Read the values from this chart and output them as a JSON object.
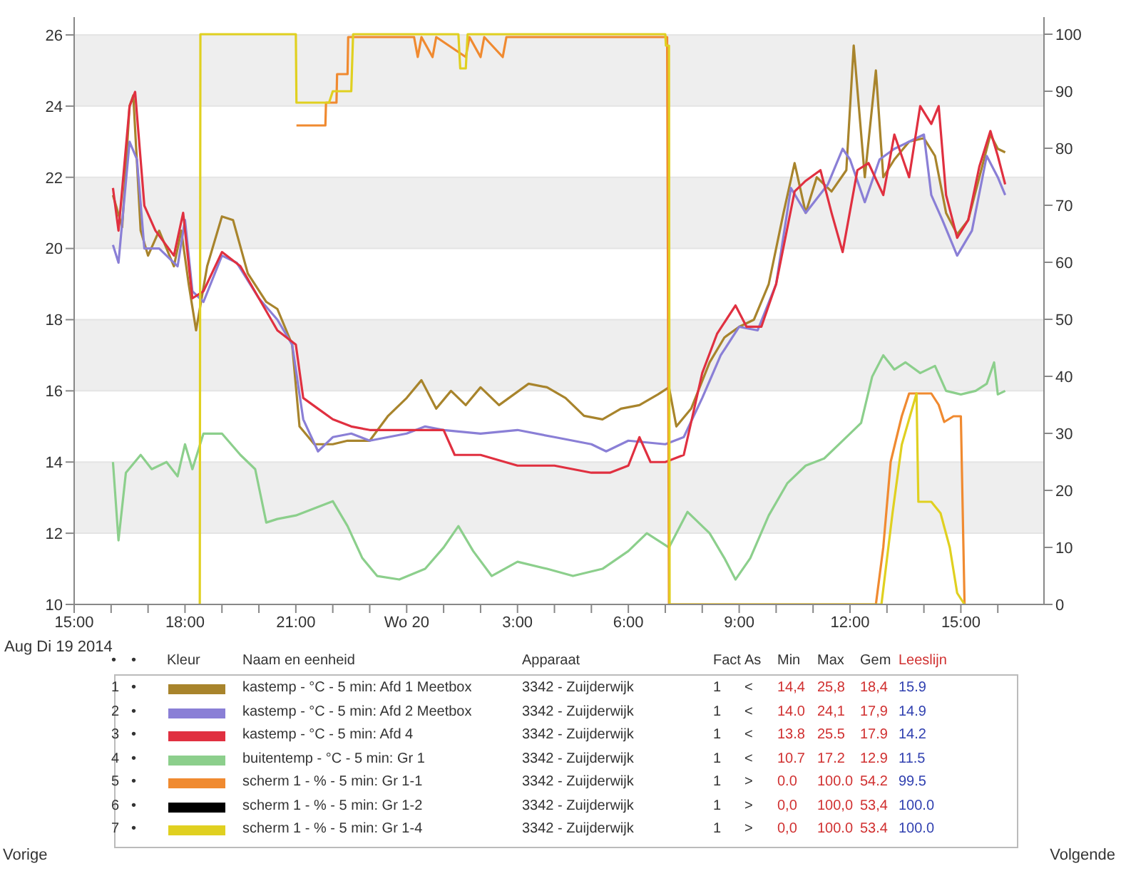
{
  "chart_data": {
    "type": "line",
    "xlim": [
      "2014-08-19T15:00",
      "2014-08-20T17:15"
    ],
    "ylim": [
      10,
      26.5
    ],
    "y2lim": [
      0,
      103
    ],
    "xticks": [
      {
        "value": "2014-08-19T15:00",
        "label": "15:00"
      },
      {
        "value": "2014-08-19T16:00",
        "label": null
      },
      {
        "value": "2014-08-19T17:00",
        "label": null
      },
      {
        "value": "2014-08-19T18:00",
        "label": "18:00"
      },
      {
        "value": "2014-08-19T19:00",
        "label": null
      },
      {
        "value": "2014-08-19T20:00",
        "label": null
      },
      {
        "value": "2014-08-19T21:00",
        "label": "21:00"
      },
      {
        "value": "2014-08-19T22:00",
        "label": null
      },
      {
        "value": "2014-08-19T23:00",
        "label": null
      },
      {
        "value": "2014-08-20T00:00",
        "label": "Wo 20"
      },
      {
        "value": "2014-08-20T01:00",
        "label": null
      },
      {
        "value": "2014-08-20T02:00",
        "label": null
      },
      {
        "value": "2014-08-20T03:00",
        "label": "3:00"
      },
      {
        "value": "2014-08-20T04:00",
        "label": null
      },
      {
        "value": "2014-08-20T05:00",
        "label": null
      },
      {
        "value": "2014-08-20T06:00",
        "label": "6:00"
      },
      {
        "value": "2014-08-20T07:00",
        "label": null
      },
      {
        "value": "2014-08-20T08:00",
        "label": null
      },
      {
        "value": "2014-08-20T09:00",
        "label": "9:00"
      },
      {
        "value": "2014-08-20T10:00",
        "label": null
      },
      {
        "value": "2014-08-20T11:00",
        "label": null
      },
      {
        "value": "2014-08-20T12:00",
        "label": "12:00"
      },
      {
        "value": "2014-08-20T13:00",
        "label": null
      },
      {
        "value": "2014-08-20T14:00",
        "label": null
      },
      {
        "value": "2014-08-20T15:00",
        "label": "15:00"
      },
      {
        "value": "2014-08-20T16:00",
        "label": null
      }
    ],
    "yticks": [
      10,
      12,
      14,
      16,
      18,
      20,
      22,
      24,
      26
    ],
    "y2ticks": [
      0,
      10,
      20,
      30,
      40,
      50,
      60,
      70,
      80,
      90,
      100
    ],
    "grid": "y",
    "legend": "bottom",
    "series": [
      {
        "name": "kastemp - °C - 5 min: Afd 1 Meetbox",
        "color": "#a8842c",
        "x": [
          "2014-08-19T16:03",
          "2014-08-19T16:18",
          "2014-08-19T16:30",
          "2014-08-19T16:36",
          "2014-08-19T16:48",
          "2014-08-19T17:00",
          "2014-08-19T17:18",
          "2014-08-19T17:42",
          "2014-08-19T17:54",
          "2014-08-19T18:06",
          "2014-08-19T18:18",
          "2014-08-19T18:36",
          "2014-08-19T19:00",
          "2014-08-19T19:18",
          "2014-08-19T19:42",
          "2014-08-19T20:12",
          "2014-08-19T20:30",
          "2014-08-19T20:54",
          "2014-08-19T21:06",
          "2014-08-19T21:30",
          "2014-08-19T22:00",
          "2014-08-19T22:24",
          "2014-08-19T23:00",
          "2014-08-19T23:30",
          "2014-08-20T00:00",
          "2014-08-20T00:24",
          "2014-08-20T00:48",
          "2014-08-20T01:12",
          "2014-08-20T01:36",
          "2014-08-20T02:00",
          "2014-08-20T02:30",
          "2014-08-20T03:18",
          "2014-08-20T03:48",
          "2014-08-20T04:18",
          "2014-08-20T04:48",
          "2014-08-20T05:18",
          "2014-08-20T05:48",
          "2014-08-20T06:18",
          "2014-08-20T06:48",
          "2014-08-20T07:06",
          "2014-08-20T07:18",
          "2014-08-20T07:42",
          "2014-08-20T08:12",
          "2014-08-20T08:36",
          "2014-08-20T09:00",
          "2014-08-20T09:24",
          "2014-08-20T09:48",
          "2014-08-20T10:12",
          "2014-08-20T10:30",
          "2014-08-20T10:48",
          "2014-08-20T11:06",
          "2014-08-20T11:30",
          "2014-08-20T11:54",
          "2014-08-20T12:06",
          "2014-08-20T12:24",
          "2014-08-20T12:42",
          "2014-08-20T12:54",
          "2014-08-20T13:12",
          "2014-08-20T13:36",
          "2014-08-20T14:00",
          "2014-08-20T14:18",
          "2014-08-20T14:36",
          "2014-08-20T14:54",
          "2014-08-20T15:12",
          "2014-08-20T15:30",
          "2014-08-20T15:48",
          "2014-08-20T16:00",
          "2014-08-20T16:12"
        ],
        "values": [
          21.5,
          20.6,
          24.0,
          24.3,
          20.5,
          19.8,
          20.5,
          19.5,
          20.5,
          19.0,
          17.7,
          19.5,
          20.9,
          20.8,
          19.3,
          18.5,
          18.3,
          17.3,
          15.0,
          14.5,
          14.5,
          14.6,
          14.6,
          15.3,
          15.8,
          16.3,
          15.5,
          16.0,
          15.6,
          16.1,
          15.6,
          16.2,
          16.1,
          15.8,
          15.3,
          15.2,
          15.5,
          15.6,
          15.9,
          16.1,
          15.0,
          15.5,
          16.8,
          17.5,
          17.8,
          18.0,
          19.0,
          21.0,
          22.4,
          21.0,
          22.0,
          21.6,
          22.2,
          25.7,
          22.0,
          25.0,
          22.0,
          22.5,
          23.0,
          23.1,
          22.6,
          21.0,
          20.4,
          20.8,
          22.0,
          23.2,
          22.8,
          22.7
        ]
      },
      {
        "name": "kastemp - °C - 5 min: Afd 2 Meetbox",
        "color": "#8a7fd6",
        "x": [
          "2014-08-19T16:03",
          "2014-08-19T16:12",
          "2014-08-19T16:30",
          "2014-08-19T16:42",
          "2014-08-19T16:54",
          "2014-08-19T17:18",
          "2014-08-19T17:48",
          "2014-08-19T18:00",
          "2014-08-19T18:12",
          "2014-08-19T18:30",
          "2014-08-19T19:00",
          "2014-08-19T19:24",
          "2014-08-19T20:00",
          "2014-08-19T20:30",
          "2014-08-19T20:54",
          "2014-08-19T21:12",
          "2014-08-19T21:36",
          "2014-08-19T22:00",
          "2014-08-19T22:30",
          "2014-08-19T23:00",
          "2014-08-20T00:00",
          "2014-08-20T00:30",
          "2014-08-20T01:00",
          "2014-08-20T02:00",
          "2014-08-20T03:00",
          "2014-08-20T04:00",
          "2014-08-20T05:00",
          "2014-08-20T05:24",
          "2014-08-20T06:00",
          "2014-08-20T07:00",
          "2014-08-20T07:30",
          "2014-08-20T08:00",
          "2014-08-20T08:30",
          "2014-08-20T09:00",
          "2014-08-20T09:30",
          "2014-08-20T10:00",
          "2014-08-20T10:24",
          "2014-08-20T10:48",
          "2014-08-20T11:06",
          "2014-08-20T11:24",
          "2014-08-20T11:48",
          "2014-08-20T12:00",
          "2014-08-20T12:24",
          "2014-08-20T12:48",
          "2014-08-20T13:12",
          "2014-08-20T13:36",
          "2014-08-20T14:00",
          "2014-08-20T14:12",
          "2014-08-20T14:30",
          "2014-08-20T14:54",
          "2014-08-20T15:18",
          "2014-08-20T15:42",
          "2014-08-20T16:00",
          "2014-08-20T16:12"
        ],
        "values": [
          20.1,
          19.6,
          23.0,
          22.5,
          20.0,
          20.0,
          19.5,
          20.8,
          18.8,
          18.5,
          19.8,
          19.6,
          18.6,
          18.0,
          17.3,
          15.2,
          14.3,
          14.7,
          14.8,
          14.6,
          14.8,
          15.0,
          14.9,
          14.8,
          14.9,
          14.7,
          14.5,
          14.3,
          14.6,
          14.5,
          14.7,
          15.8,
          17.0,
          17.8,
          17.7,
          19.0,
          21.7,
          21.0,
          21.4,
          21.8,
          22.8,
          22.5,
          21.3,
          22.5,
          22.8,
          23.0,
          23.2,
          21.5,
          20.8,
          19.8,
          20.5,
          22.6,
          22.0,
          21.5
        ]
      },
      {
        "name": "kastemp - °C - 5 min: Afd 4",
        "color": "#e03040",
        "x": [
          "2014-08-19T16:03",
          "2014-08-19T16:12",
          "2014-08-19T16:30",
          "2014-08-19T16:39",
          "2014-08-19T16:54",
          "2014-08-19T17:12",
          "2014-08-19T17:42",
          "2014-08-19T17:57",
          "2014-08-19T18:12",
          "2014-08-19T18:30",
          "2014-08-19T19:00",
          "2014-08-19T19:30",
          "2014-08-19T20:00",
          "2014-08-19T20:30",
          "2014-08-19T21:00",
          "2014-08-19T21:12",
          "2014-08-19T21:36",
          "2014-08-19T22:00",
          "2014-08-19T22:30",
          "2014-08-19T23:00",
          "2014-08-20T00:00",
          "2014-08-20T01:00",
          "2014-08-20T01:18",
          "2014-08-20T02:00",
          "2014-08-20T03:00",
          "2014-08-20T04:00",
          "2014-08-20T05:00",
          "2014-08-20T05:30",
          "2014-08-20T06:00",
          "2014-08-20T06:18",
          "2014-08-20T06:36",
          "2014-08-20T07:00",
          "2014-08-20T07:30",
          "2014-08-20T08:00",
          "2014-08-20T08:24",
          "2014-08-20T08:54",
          "2014-08-20T09:12",
          "2014-08-20T09:36",
          "2014-08-20T10:00",
          "2014-08-20T10:30",
          "2014-08-20T10:48",
          "2014-08-20T11:12",
          "2014-08-20T11:30",
          "2014-08-20T11:48",
          "2014-08-20T12:12",
          "2014-08-20T12:30",
          "2014-08-20T12:54",
          "2014-08-20T13:12",
          "2014-08-20T13:36",
          "2014-08-20T13:54",
          "2014-08-20T14:12",
          "2014-08-20T14:24",
          "2014-08-20T14:36",
          "2014-08-20T14:54",
          "2014-08-20T15:12",
          "2014-08-20T15:30",
          "2014-08-20T15:48",
          "2014-08-20T16:00",
          "2014-08-20T16:12"
        ],
        "values": [
          21.7,
          20.5,
          24.0,
          24.4,
          21.2,
          20.5,
          19.8,
          21.0,
          18.6,
          18.8,
          19.9,
          19.5,
          18.6,
          17.7,
          17.3,
          15.8,
          15.5,
          15.2,
          15.0,
          14.9,
          14.9,
          14.9,
          14.2,
          14.2,
          13.9,
          13.9,
          13.7,
          13.7,
          13.9,
          14.7,
          14.0,
          14.0,
          14.2,
          16.5,
          17.6,
          18.4,
          17.8,
          17.8,
          19.0,
          21.6,
          21.9,
          22.2,
          21.0,
          19.9,
          22.2,
          22.4,
          21.5,
          23.2,
          22.0,
          24.0,
          23.5,
          24.0,
          21.5,
          20.3,
          20.8,
          22.3,
          23.3,
          22.6,
          21.8
        ]
      },
      {
        "name": "buitentemp - °C - 5 min: Gr 1",
        "color": "#8ccf8c",
        "x": [
          "2014-08-19T16:03",
          "2014-08-19T16:12",
          "2014-08-19T16:24",
          "2014-08-19T16:48",
          "2014-08-19T17:06",
          "2014-08-19T17:30",
          "2014-08-19T17:48",
          "2014-08-19T18:00",
          "2014-08-19T18:12",
          "2014-08-19T18:30",
          "2014-08-19T19:00",
          "2014-08-19T19:30",
          "2014-08-19T19:54",
          "2014-08-19T20:12",
          "2014-08-19T20:30",
          "2014-08-19T21:00",
          "2014-08-19T21:30",
          "2014-08-19T22:00",
          "2014-08-19T22:24",
          "2014-08-19T22:48",
          "2014-08-19T23:12",
          "2014-08-19T23:48",
          "2014-08-20T00:30",
          "2014-08-20T01:00",
          "2014-08-20T01:24",
          "2014-08-20T01:48",
          "2014-08-20T02:18",
          "2014-08-20T03:00",
          "2014-08-20T03:48",
          "2014-08-20T04:30",
          "2014-08-20T05:18",
          "2014-08-20T06:00",
          "2014-08-20T06:30",
          "2014-08-20T07:06",
          "2014-08-20T07:36",
          "2014-08-20T08:12",
          "2014-08-20T08:36",
          "2014-08-20T08:54",
          "2014-08-20T09:18",
          "2014-08-20T09:48",
          "2014-08-20T10:18",
          "2014-08-20T10:48",
          "2014-08-20T11:18",
          "2014-08-20T11:48",
          "2014-08-20T12:18",
          "2014-08-20T12:36",
          "2014-08-20T12:54",
          "2014-08-20T13:12",
          "2014-08-20T13:30",
          "2014-08-20T13:54",
          "2014-08-20T14:18",
          "2014-08-20T14:36",
          "2014-08-20T15:00",
          "2014-08-20T15:24",
          "2014-08-20T15:42",
          "2014-08-20T15:54",
          "2014-08-20T16:00",
          "2014-08-20T16:12"
        ],
        "values": [
          14.0,
          11.8,
          13.7,
          14.2,
          13.8,
          14.0,
          13.6,
          14.5,
          13.8,
          14.8,
          14.8,
          14.2,
          13.8,
          12.3,
          12.4,
          12.5,
          12.7,
          12.9,
          12.2,
          11.3,
          10.8,
          10.7,
          11.0,
          11.6,
          12.2,
          11.5,
          10.8,
          11.2,
          11.0,
          10.8,
          11.0,
          11.5,
          12.0,
          11.6,
          12.6,
          12.0,
          11.3,
          10.7,
          11.3,
          12.5,
          13.4,
          13.9,
          14.1,
          14.6,
          15.1,
          16.4,
          17.0,
          16.6,
          16.8,
          16.5,
          16.7,
          16.0,
          15.9,
          16.0,
          16.2,
          16.8,
          15.9,
          16.0
        ]
      },
      {
        "name": "scherm 1 - % - 5 min: Gr 1-1",
        "color": "#f08a30",
        "axis": "y2",
        "x": [
          "2014-08-19T21:01",
          "2014-08-19T21:48",
          "2014-08-19T21:49",
          "2014-08-19T22:06",
          "2014-08-19T22:07",
          "2014-08-19T22:24",
          "2014-08-19T22:25",
          "2014-08-20T00:12",
          "2014-08-20T00:18",
          "2014-08-20T00:24",
          "2014-08-20T00:42",
          "2014-08-20T00:48",
          "2014-08-20T01:36",
          "2014-08-20T01:42",
          "2014-08-20T02:00",
          "2014-08-20T02:06",
          "2014-08-20T02:36",
          "2014-08-20T02:42",
          "2014-08-20T07:03",
          "2014-08-20T07:06",
          "2014-08-20T12:42",
          "2014-08-20T12:54",
          "2014-08-20T13:06",
          "2014-08-20T13:24",
          "2014-08-20T13:36",
          "2014-08-20T14:12",
          "2014-08-20T14:24",
          "2014-08-20T14:33",
          "2014-08-20T14:48",
          "2014-08-20T15:00",
          "2014-08-20T15:06"
        ],
        "values": [
          84,
          84,
          88,
          88,
          93,
          93,
          99.5,
          99.5,
          96,
          99.5,
          96,
          99.5,
          96,
          99.5,
          96,
          99.5,
          96,
          99.5,
          99.5,
          0,
          0,
          10,
          25,
          33,
          37,
          37,
          35,
          32,
          33,
          33,
          0
        ]
      },
      {
        "name": "scherm 1 - % - 5 min: Gr 1-2",
        "color": "#000000",
        "axis": "y2"
      },
      {
        "name": "scherm 1 - % - 5 min: Gr 1-4",
        "color": "#e0d020",
        "axis": "y2",
        "x": [
          "2014-08-19T18:24",
          "2014-08-19T18:25",
          "2014-08-19T21:00",
          "2014-08-19T21:01",
          "2014-08-19T21:54",
          "2014-08-19T22:00",
          "2014-08-19T22:30",
          "2014-08-19T22:33",
          "2014-08-20T01:24",
          "2014-08-20T01:27",
          "2014-08-20T01:36",
          "2014-08-20T01:39",
          "2014-08-20T07:00",
          "2014-08-20T07:01",
          "2014-08-20T07:06",
          "2014-08-20T07:07",
          "2014-08-20T12:51",
          "2014-08-20T13:00",
          "2014-08-20T13:09",
          "2014-08-20T13:24",
          "2014-08-20T13:48",
          "2014-08-20T13:51",
          "2014-08-20T14:12",
          "2014-08-20T14:27",
          "2014-08-20T14:42",
          "2014-08-20T14:54",
          "2014-08-20T15:06"
        ],
        "values": [
          0,
          100,
          100,
          88,
          88,
          90,
          90,
          100,
          100,
          94,
          94,
          100,
          100,
          98,
          98,
          0,
          0,
          8,
          16,
          28,
          37,
          18,
          18,
          16,
          10,
          2,
          0
        ]
      }
    ],
    "annotations": [
      "Aug Di 19 2014",
      "Vorige",
      "Volgende",
      "•",
      "•",
      "Kleur",
      "Naam en eenheid",
      "Apparaat",
      "Fact",
      "As",
      "Min",
      "Max",
      "Gem",
      "Leeslijn",
      "1",
      "•",
      "3342 - Zuijderwijk",
      "1",
      "<",
      "14,4",
      "25,8",
      "18,4",
      "15.9",
      "2",
      "•",
      "3342 - Zuijderwijk",
      "1",
      "<",
      "14.0",
      "24,1",
      "17,9",
      "14.9",
      "3",
      "•",
      "3342 - Zuijderwijk",
      "1",
      "<",
      "13.8",
      "25.5",
      "17.9",
      "14.2",
      "4",
      "•",
      "3342 - Zuijderwijk",
      "1",
      "<",
      "10.7",
      "17.2",
      "12.9",
      "11.5",
      "5",
      "•",
      "3342 - Zuijderwijk",
      "1",
      ">",
      "0.0",
      "100.0",
      "54.2",
      "99.5",
      "6",
      "•",
      "3342 - Zuijderwijk",
      "1",
      ">",
      "0,0",
      "100,0",
      "53,4",
      "100.0",
      "7",
      "•",
      "3342 - Zuijderwijk",
      "1",
      ">",
      "0,0",
      "100.0",
      "53.4",
      "100.0"
    ]
  }
}
